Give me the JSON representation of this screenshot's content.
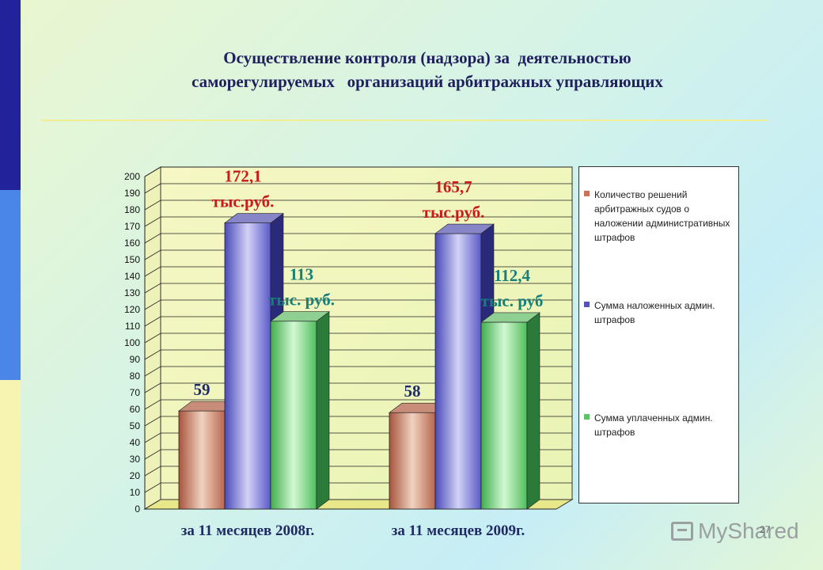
{
  "slide": {
    "title_lines": [
      "Осуществление контроля (надзора) за  деятельностью",
      "саморегулируемых   организаций арбитражных управляющих"
    ],
    "page_number": "27"
  },
  "watermark": {
    "text": "MyShared"
  },
  "colors": {
    "series": [
      "#d89a7a",
      "#8f8fdc",
      "#8fdf92"
    ],
    "label_red": "#cc1a1a",
    "label_teal": "#16807a",
    "label_navy": "#1f2a66"
  },
  "chart_data": {
    "type": "bar",
    "categories": [
      "за 11 месяцев 2008г.",
      "за 11 месяцев 2009г."
    ],
    "series": [
      {
        "name": "Количество решений арбитражных судов о наложении административных штрафов",
        "values": [
          59,
          58
        ]
      },
      {
        "name": "Сумма наложенных админ. штрафов",
        "values": [
          172.1,
          165.7
        ]
      },
      {
        "name": "Сумма уплаченных админ. штрафов",
        "values": [
          113,
          112.4
        ]
      }
    ],
    "data_labels": [
      [
        [
          "59"
        ],
        [
          "58"
        ]
      ],
      [
        [
          "172,1",
          "тыс.руб."
        ],
        [
          "165,7",
          "тыс.руб."
        ]
      ],
      [
        [
          "113",
          "тыс. руб."
        ],
        [
          "112,4",
          "тыс. руб"
        ]
      ]
    ],
    "yticks": [
      0,
      10,
      20,
      30,
      40,
      50,
      60,
      70,
      80,
      90,
      100,
      110,
      120,
      130,
      140,
      150,
      160,
      170,
      180,
      190,
      200
    ],
    "ylim": [
      0,
      200
    ],
    "grid": true,
    "legend_position": "right"
  }
}
